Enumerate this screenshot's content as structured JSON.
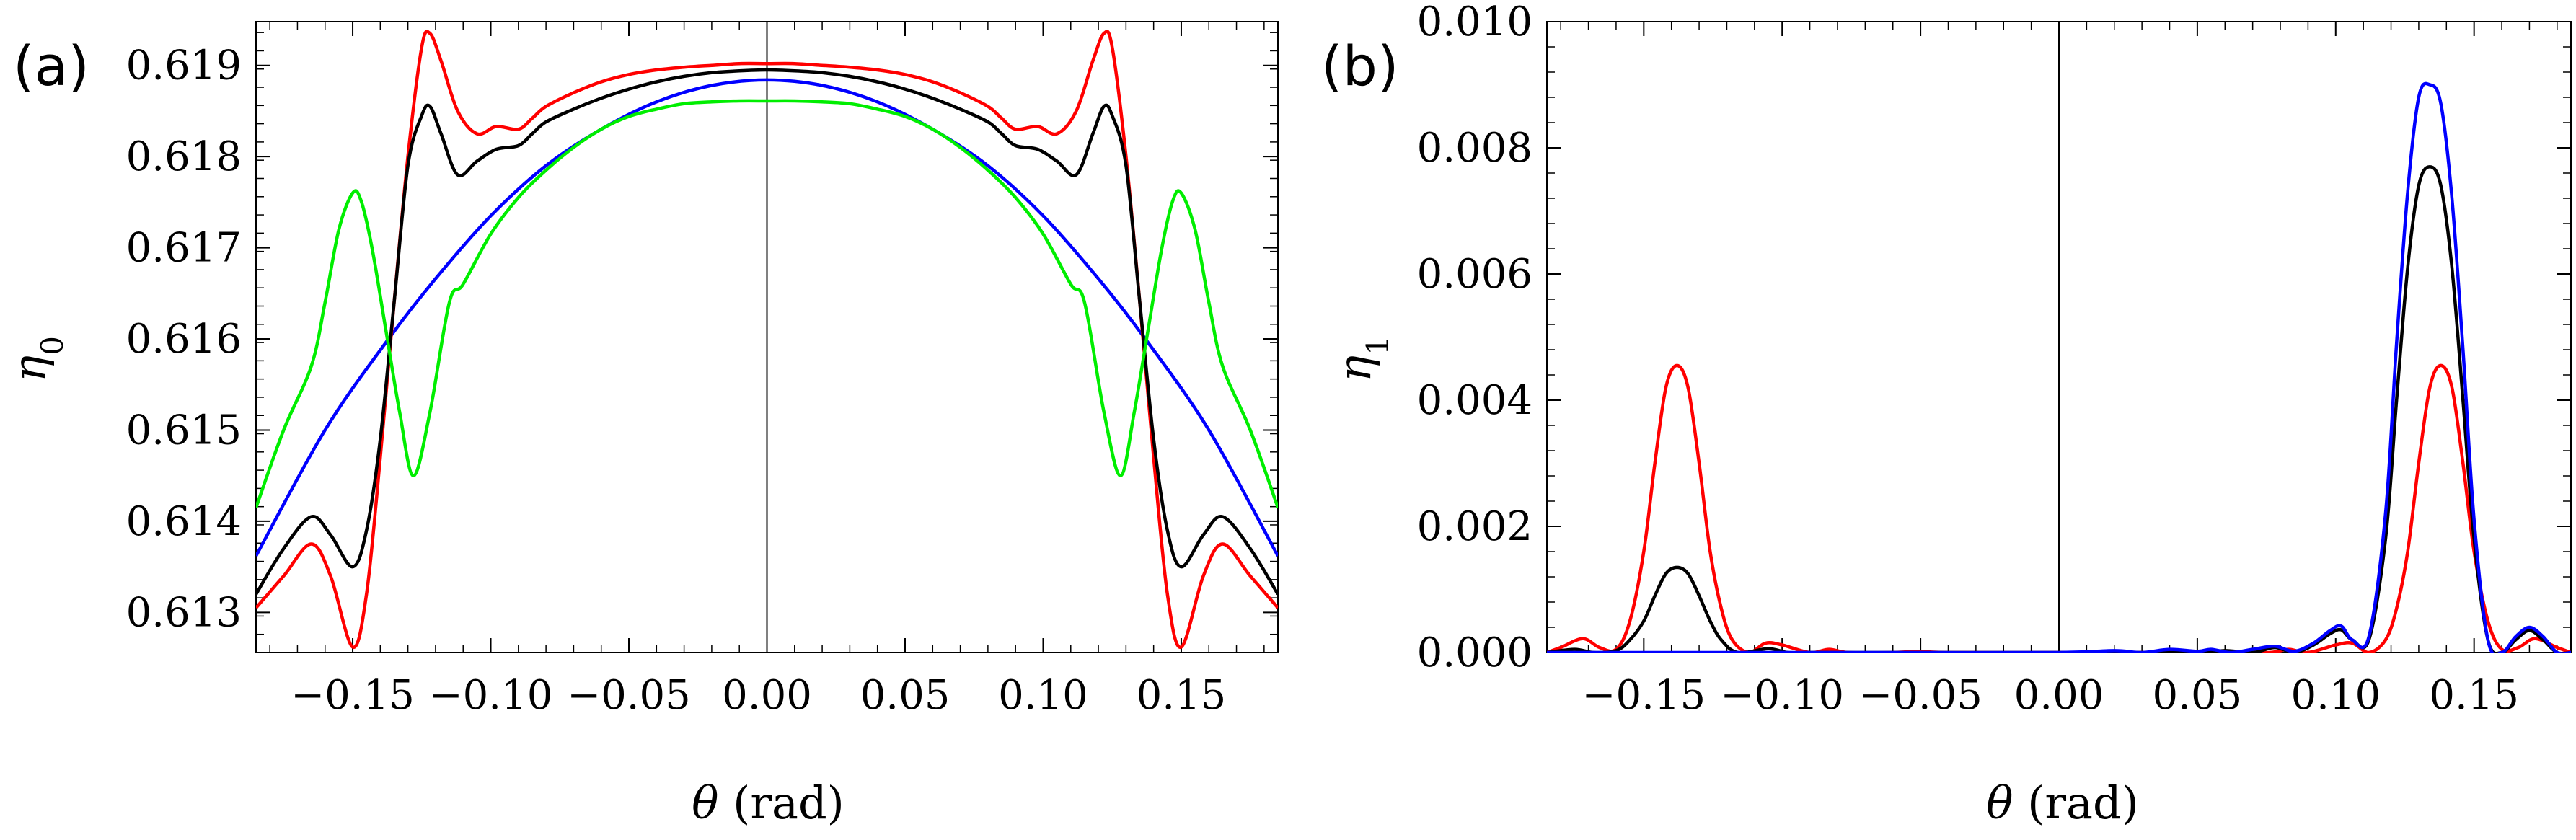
{
  "chart_data": [
    {
      "type": "line",
      "panel_label": "(a)",
      "xlabel_symbol": "θ",
      "xlabel_unit": " (rad)",
      "ylabel_symbol": "η",
      "ylabel_sub": "0",
      "xlim": [
        -0.185,
        0.185
      ],
      "ylim": [
        0.61256,
        0.61948
      ],
      "x_ticks": [
        -0.15,
        -0.1,
        -0.05,
        0.0,
        0.05,
        0.1,
        0.15
      ],
      "x_tick_labels": [
        "−0.15",
        "−0.10",
        "−0.05",
        "0.00",
        "0.05",
        "0.10",
        "0.15"
      ],
      "y_ticks": [
        0.613,
        0.614,
        0.615,
        0.616,
        0.617,
        0.618,
        0.619
      ],
      "y_tick_labels": [
        "0.613",
        "0.614",
        "0.615",
        "0.616",
        "0.617",
        "0.618",
        "0.619"
      ],
      "vertical_line_x": 0.0,
      "series": [
        {
          "name": "blue",
          "color": "#0000ff",
          "x": [
            -0.185,
            -0.16,
            -0.137,
            -0.12,
            -0.1,
            -0.08,
            -0.06,
            -0.04,
            -0.02,
            0.0,
            0.02,
            0.04,
            0.06,
            0.08,
            0.1,
            0.12,
            0.137,
            0.16,
            0.185
          ],
          "y": [
            0.61362,
            0.615,
            0.616,
            0.61666,
            0.61735,
            0.6179,
            0.6183,
            0.6186,
            0.61878,
            0.61884,
            0.61878,
            0.6186,
            0.6183,
            0.6179,
            0.61735,
            0.61666,
            0.616,
            0.615,
            0.61362
          ]
        },
        {
          "name": "red",
          "color": "#ff0000",
          "x": [
            -0.185,
            -0.175,
            -0.165,
            -0.158,
            -0.15,
            -0.145,
            -0.14,
            -0.135,
            -0.13,
            -0.125,
            -0.122,
            -0.118,
            -0.112,
            -0.105,
            -0.098,
            -0.09,
            -0.085,
            -0.08,
            -0.07,
            -0.06,
            -0.05,
            -0.04,
            -0.03,
            -0.02,
            -0.01,
            0.0,
            0.01,
            0.02,
            0.03,
            0.04,
            0.05,
            0.06,
            0.07,
            0.08,
            0.085,
            0.09,
            0.098,
            0.105,
            0.112,
            0.118,
            0.122,
            0.125,
            0.13,
            0.135,
            0.14,
            0.145,
            0.15,
            0.158,
            0.165,
            0.175,
            0.185
          ],
          "y": [
            0.61305,
            0.6134,
            0.61375,
            0.6134,
            0.61262,
            0.6132,
            0.6147,
            0.6164,
            0.618,
            0.6192,
            0.61935,
            0.61905,
            0.6185,
            0.61825,
            0.61833,
            0.6183,
            0.61842,
            0.61855,
            0.6187,
            0.61882,
            0.6189,
            0.61895,
            0.61898,
            0.619,
            0.61902,
            0.61902,
            0.61902,
            0.619,
            0.61898,
            0.61895,
            0.6189,
            0.61882,
            0.6187,
            0.61855,
            0.61842,
            0.6183,
            0.61833,
            0.61825,
            0.6185,
            0.61905,
            0.61935,
            0.6192,
            0.618,
            0.6164,
            0.6147,
            0.6132,
            0.61262,
            0.6134,
            0.61375,
            0.6134,
            0.61305
          ]
        },
        {
          "name": "black",
          "color": "#000000",
          "x": [
            -0.185,
            -0.175,
            -0.165,
            -0.158,
            -0.15,
            -0.145,
            -0.14,
            -0.135,
            -0.13,
            -0.125,
            -0.122,
            -0.118,
            -0.112,
            -0.105,
            -0.098,
            -0.09,
            -0.085,
            -0.08,
            -0.07,
            -0.06,
            -0.05,
            -0.04,
            -0.03,
            -0.02,
            -0.01,
            0.0,
            0.01,
            0.02,
            0.03,
            0.04,
            0.05,
            0.06,
            0.07,
            0.08,
            0.085,
            0.09,
            0.098,
            0.105,
            0.112,
            0.118,
            0.122,
            0.125,
            0.13,
            0.135,
            0.14,
            0.145,
            0.15,
            0.158,
            0.165,
            0.175,
            0.185
          ],
          "y": [
            0.6132,
            0.6137,
            0.61405,
            0.61385,
            0.6135,
            0.6139,
            0.6149,
            0.6164,
            0.6179,
            0.61845,
            0.61855,
            0.61825,
            0.6178,
            0.61795,
            0.61808,
            0.61812,
            0.61825,
            0.61838,
            0.61852,
            0.61864,
            0.61874,
            0.61882,
            0.61888,
            0.61892,
            0.61894,
            0.61895,
            0.61894,
            0.61892,
            0.61888,
            0.61882,
            0.61874,
            0.61864,
            0.61852,
            0.61838,
            0.61825,
            0.61812,
            0.61808,
            0.61795,
            0.6178,
            0.61825,
            0.61855,
            0.61845,
            0.6179,
            0.6164,
            0.6149,
            0.6139,
            0.6135,
            0.61385,
            0.61405,
            0.6137,
            0.6132
          ]
        },
        {
          "name": "green",
          "color": "#00ee00",
          "x": [
            -0.185,
            -0.175,
            -0.165,
            -0.16,
            -0.155,
            -0.15,
            -0.147,
            -0.143,
            -0.138,
            -0.133,
            -0.128,
            -0.122,
            -0.115,
            -0.11,
            -0.1,
            -0.09,
            -0.08,
            -0.07,
            -0.06,
            -0.05,
            -0.04,
            -0.03,
            -0.02,
            -0.01,
            0.0,
            0.01,
            0.02,
            0.03,
            0.04,
            0.05,
            0.06,
            0.07,
            0.08,
            0.09,
            0.1,
            0.11,
            0.115,
            0.122,
            0.128,
            0.133,
            0.138,
            0.143,
            0.147,
            0.15,
            0.155,
            0.16,
            0.165,
            0.175,
            0.185
          ],
          "y": [
            0.61415,
            0.615,
            0.6157,
            0.6164,
            0.6172,
            0.6176,
            0.61752,
            0.617,
            0.6161,
            0.6152,
            0.6145,
            0.6152,
            0.6164,
            0.6166,
            0.61715,
            0.61755,
            0.61785,
            0.6181,
            0.6183,
            0.61844,
            0.61852,
            0.61858,
            0.6186,
            0.61861,
            0.61861,
            0.61861,
            0.6186,
            0.61858,
            0.61852,
            0.61844,
            0.6183,
            0.6181,
            0.61785,
            0.61755,
            0.61715,
            0.6166,
            0.6164,
            0.6152,
            0.6145,
            0.6152,
            0.6161,
            0.617,
            0.61752,
            0.6176,
            0.6172,
            0.6164,
            0.6157,
            0.615,
            0.61415
          ]
        }
      ]
    },
    {
      "type": "line",
      "panel_label": "(b)",
      "xlabel_symbol": "θ",
      "xlabel_unit": " (rad)",
      "ylabel_symbol": "η",
      "ylabel_sub": "1",
      "xlim": [
        -0.185,
        0.185
      ],
      "ylim": [
        0.0,
        0.01
      ],
      "x_ticks": [
        -0.15,
        -0.1,
        -0.05,
        0.0,
        0.05,
        0.1,
        0.15
      ],
      "x_tick_labels": [
        "−0.15",
        "−0.10",
        "−0.05",
        "0.00",
        "0.05",
        "0.10",
        "0.15"
      ],
      "y_ticks": [
        0.0,
        0.002,
        0.004,
        0.006,
        0.008,
        0.01
      ],
      "y_tick_labels": [
        "0.000",
        "0.002",
        "0.004",
        "0.006",
        "0.008",
        "0.010"
      ],
      "vertical_line_x": 0.0,
      "series": [
        {
          "name": "red",
          "color": "#ff0000",
          "x": [
            -0.185,
            -0.18,
            -0.172,
            -0.166,
            -0.16,
            -0.155,
            -0.15,
            -0.146,
            -0.142,
            -0.138,
            -0.134,
            -0.13,
            -0.126,
            -0.122,
            -0.118,
            -0.112,
            -0.106,
            -0.1,
            -0.09,
            -0.083,
            -0.076,
            -0.06,
            -0.05,
            -0.04,
            0.0,
            0.04,
            0.05,
            0.06,
            0.076,
            0.083,
            0.09,
            0.1,
            0.106,
            0.112,
            0.118,
            0.122,
            0.126,
            0.13,
            0.134,
            0.138,
            0.142,
            0.146,
            0.15,
            0.155,
            0.16,
            0.166,
            0.172,
            0.18,
            0.185
          ],
          "y": [
            0.0,
            8e-05,
            0.00022,
            8e-05,
            5e-05,
            0.0005,
            0.0016,
            0.003,
            0.0042,
            0.00455,
            0.0042,
            0.003,
            0.0016,
            0.0007,
            0.0002,
            0.0,
            0.00015,
            0.00012,
            0.0,
            5e-05,
            0.0,
            0.0,
            2e-05,
            0.0,
            0.0,
            0.0,
            2e-05,
            0.0,
            0.0,
            5e-05,
            0.0,
            0.00012,
            0.00015,
            0.0,
            0.0002,
            0.0007,
            0.0016,
            0.003,
            0.0042,
            0.00455,
            0.0042,
            0.003,
            0.0016,
            0.0005,
            5e-05,
            8e-05,
            0.00022,
            8e-05,
            0.0
          ]
        },
        {
          "name": "black",
          "color": "#000000",
          "x": [
            -0.185,
            -0.175,
            -0.168,
            -0.16,
            -0.155,
            -0.15,
            -0.146,
            -0.142,
            -0.138,
            -0.134,
            -0.13,
            -0.126,
            -0.122,
            -0.116,
            -0.105,
            -0.098,
            -0.09,
            -0.08,
            0.0,
            0.05,
            0.06,
            0.07,
            0.078,
            0.085,
            0.092,
            0.098,
            0.102,
            0.106,
            0.112,
            0.118,
            0.122,
            0.126,
            0.13,
            0.134,
            0.138,
            0.142,
            0.146,
            0.15,
            0.155,
            0.16,
            0.165,
            0.17,
            0.175,
            0.18,
            0.185
          ],
          "y": [
            0.0,
            5e-05,
            0.0,
            3e-05,
            0.0002,
            0.0005,
            0.0009,
            0.00125,
            0.00135,
            0.00125,
            0.0009,
            0.0005,
            0.0002,
            0.0,
            6e-05,
            0.0,
            0.0,
            0.0,
            0.0,
            0.0,
            3e-05,
            0.0,
            8e-05,
            0.0,
            0.00012,
            0.0003,
            0.00036,
            0.0002,
            0.0002,
            0.0018,
            0.004,
            0.0061,
            0.0074,
            0.0077,
            0.0074,
            0.0061,
            0.004,
            0.0018,
            0.0002,
            0.0,
            0.0002,
            0.00035,
            0.0002,
            0.0,
            0.0
          ]
        },
        {
          "name": "blue",
          "color": "#0000ff",
          "x": [
            -0.185,
            -0.15,
            -0.1,
            -0.05,
            0.0,
            0.02,
            0.03,
            0.04,
            0.05,
            0.055,
            0.062,
            0.07,
            0.078,
            0.085,
            0.092,
            0.098,
            0.102,
            0.106,
            0.112,
            0.118,
            0.122,
            0.126,
            0.13,
            0.134,
            0.138,
            0.142,
            0.146,
            0.15,
            0.155,
            0.16,
            0.165,
            0.17,
            0.175,
            0.18,
            0.185
          ],
          "y": [
            0.0,
            0.0,
            0.0,
            0.0,
            0.0,
            3e-05,
            0.0,
            5e-05,
            2e-05,
            5e-05,
            0.0,
            5e-05,
            0.0001,
            2e-05,
            0.00015,
            0.00035,
            0.00042,
            0.0002,
            0.00025,
            0.0022,
            0.0049,
            0.0073,
            0.0088,
            0.009,
            0.0087,
            0.0072,
            0.0048,
            0.0021,
            0.0002,
            0.0,
            0.00025,
            0.0004,
            0.00025,
            0.0,
            0.0
          ]
        }
      ]
    }
  ]
}
